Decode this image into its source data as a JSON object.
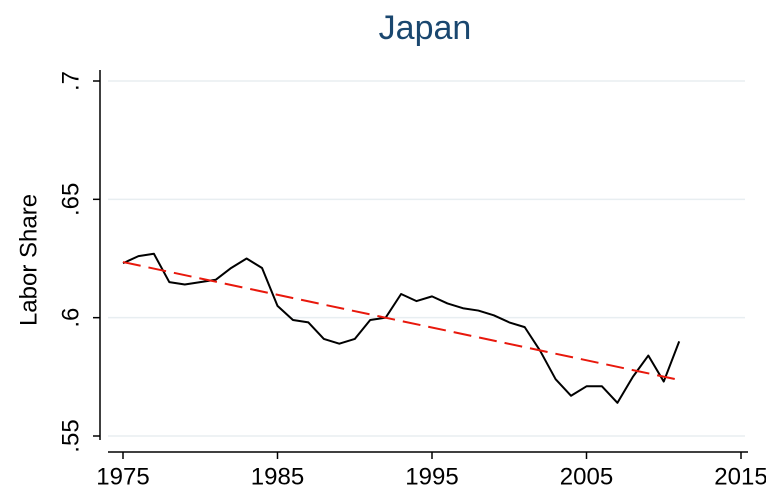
{
  "chart_data": {
    "type": "line",
    "title": "Japan",
    "y_label": "Labor Share",
    "xlim": [
      1975,
      2015
    ],
    "xticks": [
      1975,
      1985,
      1995,
      2005,
      2015
    ],
    "ylim": [
      0.55,
      0.7
    ],
    "yticks": [
      {
        "value": 0.55,
        "label": ".55"
      },
      {
        "value": 0.6,
        "label": ".6"
      },
      {
        "value": 0.65,
        "label": ".65"
      },
      {
        "value": 0.7,
        "label": ".7"
      }
    ],
    "grid": true,
    "series": [
      {
        "color": "#000000",
        "dash": false,
        "x": [
          1975,
          1976,
          1977,
          1978,
          1979,
          1980,
          1981,
          1982,
          1983,
          1984,
          1985,
          1986,
          1987,
          1988,
          1989,
          1990,
          1991,
          1992,
          1993,
          1994,
          1995,
          1996,
          1997,
          1998,
          1999,
          2000,
          2001,
          2002,
          2003,
          2004,
          2005,
          2006,
          2007,
          2008,
          2009,
          2010,
          2011
        ],
        "values": [
          0.623,
          0.626,
          0.627,
          0.615,
          0.614,
          0.615,
          0.616,
          0.621,
          0.625,
          0.621,
          0.605,
          0.599,
          0.598,
          0.591,
          0.589,
          0.591,
          0.599,
          0.6,
          0.61,
          0.607,
          0.609,
          0.606,
          0.604,
          0.603,
          0.601,
          0.598,
          0.596,
          0.586,
          0.574,
          0.567,
          0.571,
          0.571,
          0.564,
          0.575,
          0.584,
          0.573,
          0.59
        ]
      },
      {
        "color": "#e8180c",
        "dash": true,
        "x": [
          1975,
          2011
        ],
        "values": [
          0.6235,
          0.5737
        ]
      }
    ]
  }
}
